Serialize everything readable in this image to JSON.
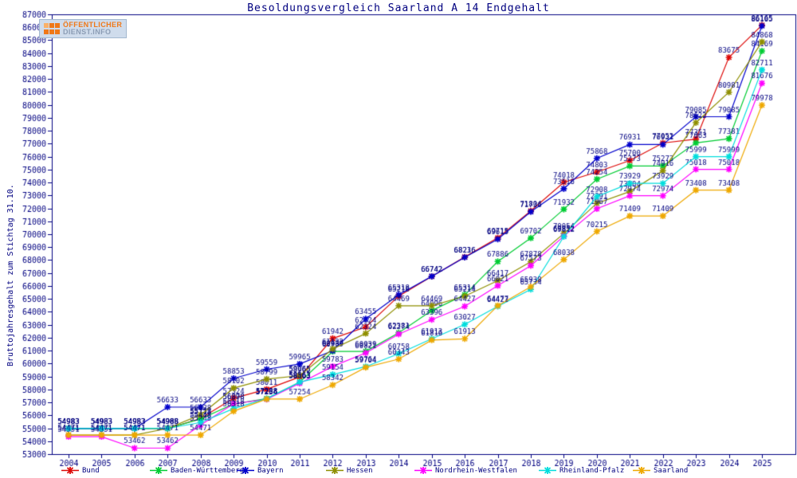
{
  "title": "Besoldungsvergleich Saarland A 14 Endgehalt",
  "logo": {
    "line1": "ÖFFENTLICHER",
    "line2": "DIENST.INFO"
  },
  "y_axis": {
    "label": "Bruttojahresgehalt zum Stichtag 31.10."
  },
  "chart_data": {
    "type": "line",
    "title": "Besoldungsvergleich Saarland A 14 Endgehalt",
    "x": [
      2004,
      2005,
      2006,
      2007,
      2008,
      2009,
      2010,
      2011,
      2012,
      2013,
      2014,
      2015,
      2016,
      2017,
      2018,
      2019,
      2020,
      2021,
      2022,
      2023,
      2024,
      2025
    ],
    "ylim": [
      53000,
      87000
    ],
    "y_step": 1000,
    "grid": false,
    "legend_position": "bottom",
    "point_labels": true,
    "label_color": "#000080",
    "axis_color": "#000080",
    "series": [
      {
        "name": "Bund",
        "color": "#dd0806",
        "values": [
          54983,
          54983,
          54983,
          54968,
          55753,
          57324,
          58011,
          58965,
          61942,
          62824,
          65218,
          66742,
          68236,
          69715,
          71804,
          74018,
          74803,
          75700,
          77052,
          77351,
          83675,
          86165
        ]
      },
      {
        "name": "Baden-Württemberg",
        "color": "#00cc33",
        "values": [
          54983,
          54983,
          54983,
          54988,
          55718,
          56878,
          57288,
          58563,
          60939,
          60939,
          62381,
          64096,
          65314,
          67886,
          69702,
          71932,
          74254,
          75273,
          75273,
          77063,
          77381,
          84169
        ]
      },
      {
        "name": "Bayern",
        "color": "#0000cc",
        "values": [
          54983,
          54983,
          54983,
          56633,
          56633,
          58853,
          59559,
          59965,
          60989,
          63455,
          65318,
          66742,
          68216,
          69615,
          71736,
          73516,
          75868,
          76931,
          76931,
          79085,
          79085,
          86105
        ]
      },
      {
        "name": "Hessen",
        "color": "#8f8f00",
        "values": [
          54471,
          54471,
          54471,
          54988,
          56038,
          58102,
          58799,
          59065,
          61132,
          62324,
          64469,
          64469,
          65214,
          66417,
          67878,
          70054,
          72391,
          73304,
          74916,
          78622,
          80981,
          84868
        ]
      },
      {
        "name": "Nordrhein-Westfalen",
        "color": "#ff00ff",
        "values": [
          54351,
          54351,
          53462,
          53462,
          55248,
          56898,
          57234,
          58463,
          59783,
          60821,
          62274,
          63396,
          64427,
          66021,
          67573,
          69852,
          71967,
          72974,
          72974,
          75018,
          75018,
          81676
        ]
      },
      {
        "name": "Rheinland-Pfalz",
        "color": "#00dddd",
        "values": [
          54983,
          54983,
          54983,
          54988,
          55448,
          56518,
          57288,
          58563,
          59154,
          59764,
          60758,
          61913,
          63027,
          64423,
          65734,
          69812,
          72908,
          73929,
          73929,
          75999,
          75999,
          82711
        ]
      },
      {
        "name": "Saarland",
        "color": "#eea800",
        "values": [
          54471,
          54471,
          54471,
          54471,
          54471,
          56318,
          57254,
          57254,
          58342,
          59704,
          60343,
          61816,
          61913,
          64477,
          65938,
          68038,
          70215,
          71409,
          71409,
          73408,
          73408,
          79978
        ]
      }
    ]
  }
}
